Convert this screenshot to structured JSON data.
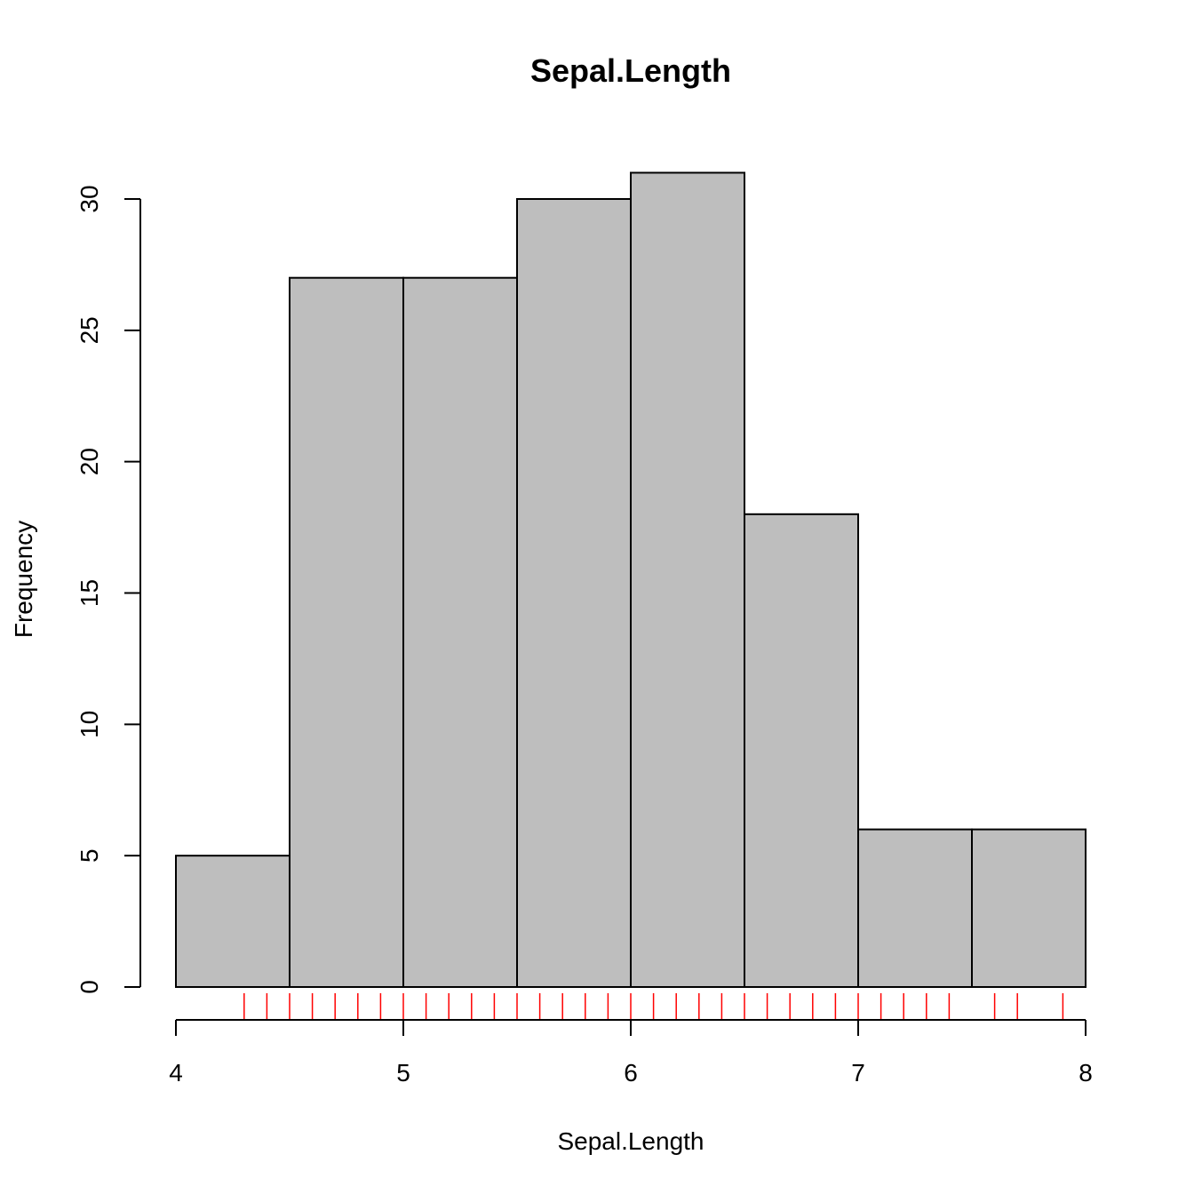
{
  "chart_data": {
    "type": "bar",
    "title": "Sepal.Length",
    "xlabel": "Sepal.Length",
    "ylabel": "Frequency",
    "bins": [
      {
        "start": 4.0,
        "end": 4.5,
        "count": 5
      },
      {
        "start": 4.5,
        "end": 5.0,
        "count": 27
      },
      {
        "start": 5.0,
        "end": 5.5,
        "count": 27
      },
      {
        "start": 5.5,
        "end": 6.0,
        "count": 30
      },
      {
        "start": 6.0,
        "end": 6.5,
        "count": 31
      },
      {
        "start": 6.5,
        "end": 7.0,
        "count": 18
      },
      {
        "start": 7.0,
        "end": 7.5,
        "count": 6
      },
      {
        "start": 7.5,
        "end": 8.0,
        "count": 6
      }
    ],
    "xlim": [
      4,
      8
    ],
    "ylim": [
      0,
      31
    ],
    "x_ticks": [
      4,
      5,
      6,
      7,
      8
    ],
    "y_ticks": [
      0,
      5,
      10,
      15,
      20,
      25,
      30
    ],
    "bar_color": "#bebebe",
    "rug_color": "#ff0000",
    "rug": [
      4.3,
      4.4,
      4.5,
      4.6,
      4.7,
      4.8,
      4.9,
      5.0,
      5.1,
      5.2,
      5.3,
      5.4,
      5.5,
      5.6,
      5.7,
      5.8,
      5.9,
      6.0,
      6.1,
      6.2,
      6.3,
      6.4,
      6.5,
      6.6,
      6.7,
      6.8,
      6.9,
      7.0,
      7.1,
      7.2,
      7.3,
      7.4,
      7.6,
      7.7,
      7.9
    ],
    "grid": false,
    "legend": "none"
  }
}
